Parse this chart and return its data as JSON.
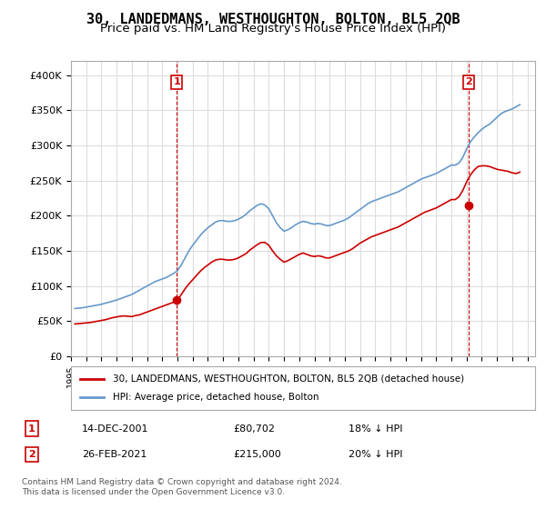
{
  "title": "30, LANDEDMANS, WESTHOUGHTON, BOLTON, BL5 2QB",
  "subtitle": "Price paid vs. HM Land Registry's House Price Index (HPI)",
  "ylabel_ticks": [
    "£0",
    "£50K",
    "£100K",
    "£150K",
    "£200K",
    "£250K",
    "£300K",
    "£350K",
    "£400K"
  ],
  "ytick_values": [
    0,
    50000,
    100000,
    150000,
    200000,
    250000,
    300000,
    350000,
    400000
  ],
  "ylim": [
    0,
    420000
  ],
  "xlim_start": 1995.0,
  "xlim_end": 2025.5,
  "sale1_x": 2001.95,
  "sale1_y": 80702,
  "sale2_x": 2021.15,
  "sale2_y": 215000,
  "sale1_label": "1",
  "sale2_label": "2",
  "vline1_x": 2001.95,
  "vline2_x": 2021.15,
  "legend_line1": "30, LANDEDMANS, WESTHOUGHTON, BOLTON, BL5 2QB (detached house)",
  "legend_line2": "HPI: Average price, detached house, Bolton",
  "annotation1_box": "1",
  "annotation1_date": "14-DEC-2001",
  "annotation1_price": "£80,702",
  "annotation1_hpi": "18% ↓ HPI",
  "annotation2_box": "2",
  "annotation2_date": "26-FEB-2021",
  "annotation2_price": "£215,000",
  "annotation2_hpi": "20% ↓ HPI",
  "footer": "Contains HM Land Registry data © Crown copyright and database right 2024.\nThis data is licensed under the Open Government Licence v3.0.",
  "red_color": "#cc0000",
  "blue_color": "#6699cc",
  "vline_color": "#cc0000",
  "grid_color": "#dddddd",
  "background_color": "#ffffff",
  "plot_bg_color": "#ffffff",
  "title_fontsize": 11,
  "subtitle_fontsize": 9.5,
  "hpi_data": {
    "years": [
      1995.25,
      1995.5,
      1995.75,
      1996.0,
      1996.25,
      1996.5,
      1996.75,
      1997.0,
      1997.25,
      1997.5,
      1997.75,
      1998.0,
      1998.25,
      1998.5,
      1998.75,
      1999.0,
      1999.25,
      1999.5,
      1999.75,
      2000.0,
      2000.25,
      2000.5,
      2000.75,
      2001.0,
      2001.25,
      2001.5,
      2001.75,
      2002.0,
      2002.25,
      2002.5,
      2002.75,
      2003.0,
      2003.25,
      2003.5,
      2003.75,
      2004.0,
      2004.25,
      2004.5,
      2004.75,
      2005.0,
      2005.25,
      2005.5,
      2005.75,
      2006.0,
      2006.25,
      2006.5,
      2006.75,
      2007.0,
      2007.25,
      2007.5,
      2007.75,
      2008.0,
      2008.25,
      2008.5,
      2008.75,
      2009.0,
      2009.25,
      2009.5,
      2009.75,
      2010.0,
      2010.25,
      2010.5,
      2010.75,
      2011.0,
      2011.25,
      2011.5,
      2011.75,
      2012.0,
      2012.25,
      2012.5,
      2012.75,
      2013.0,
      2013.25,
      2013.5,
      2013.75,
      2014.0,
      2014.25,
      2014.5,
      2014.75,
      2015.0,
      2015.25,
      2015.5,
      2015.75,
      2016.0,
      2016.25,
      2016.5,
      2016.75,
      2017.0,
      2017.25,
      2017.5,
      2017.75,
      2018.0,
      2018.25,
      2018.5,
      2018.75,
      2019.0,
      2019.25,
      2019.5,
      2019.75,
      2020.0,
      2020.25,
      2020.5,
      2020.75,
      2021.0,
      2021.25,
      2021.5,
      2021.75,
      2022.0,
      2022.25,
      2022.5,
      2022.75,
      2023.0,
      2023.25,
      2023.5,
      2023.75,
      2024.0,
      2024.25,
      2024.5
    ],
    "values": [
      68000,
      68500,
      69000,
      70000,
      71000,
      72000,
      73000,
      74000,
      75500,
      77000,
      78500,
      80000,
      82000,
      84000,
      86000,
      88000,
      91000,
      94000,
      97000,
      100000,
      103000,
      106000,
      108000,
      110000,
      112000,
      115000,
      118000,
      122000,
      130000,
      140000,
      150000,
      158000,
      165000,
      172000,
      178000,
      183000,
      187000,
      191000,
      193000,
      193000,
      192000,
      192000,
      193000,
      195000,
      198000,
      202000,
      207000,
      211000,
      215000,
      217000,
      215000,
      210000,
      200000,
      190000,
      183000,
      178000,
      180000,
      183000,
      187000,
      190000,
      192000,
      191000,
      189000,
      188000,
      189000,
      188000,
      186000,
      186000,
      188000,
      190000,
      192000,
      194000,
      197000,
      201000,
      205000,
      209000,
      213000,
      217000,
      220000,
      222000,
      224000,
      226000,
      228000,
      230000,
      232000,
      234000,
      237000,
      240000,
      243000,
      246000,
      249000,
      252000,
      254000,
      256000,
      258000,
      260000,
      263000,
      266000,
      269000,
      272000,
      272000,
      275000,
      283000,
      295000,
      305000,
      312000,
      318000,
      323000,
      327000,
      330000,
      335000,
      340000,
      345000,
      348000,
      350000,
      352000,
      355000,
      358000
    ]
  },
  "red_data": {
    "years": [
      1995.25,
      1995.5,
      1995.75,
      1996.0,
      1996.25,
      1996.5,
      1996.75,
      1997.0,
      1997.25,
      1997.5,
      1997.75,
      1998.0,
      1998.25,
      1998.5,
      1998.75,
      1999.0,
      1999.25,
      1999.5,
      1999.75,
      2000.0,
      2000.25,
      2000.5,
      2000.75,
      2001.0,
      2001.25,
      2001.5,
      2001.75,
      2002.0,
      2002.25,
      2002.5,
      2002.75,
      2003.0,
      2003.25,
      2003.5,
      2003.75,
      2004.0,
      2004.25,
      2004.5,
      2004.75,
      2005.0,
      2005.25,
      2005.5,
      2005.75,
      2006.0,
      2006.25,
      2006.5,
      2006.75,
      2007.0,
      2007.25,
      2007.5,
      2007.75,
      2008.0,
      2008.25,
      2008.5,
      2008.75,
      2009.0,
      2009.25,
      2009.5,
      2009.75,
      2010.0,
      2010.25,
      2010.5,
      2010.75,
      2011.0,
      2011.25,
      2011.5,
      2011.75,
      2012.0,
      2012.25,
      2012.5,
      2012.75,
      2013.0,
      2013.25,
      2013.5,
      2013.75,
      2014.0,
      2014.25,
      2014.5,
      2014.75,
      2015.0,
      2015.25,
      2015.5,
      2015.75,
      2016.0,
      2016.25,
      2016.5,
      2016.75,
      2017.0,
      2017.25,
      2017.5,
      2017.75,
      2018.0,
      2018.25,
      2018.5,
      2018.75,
      2019.0,
      2019.25,
      2019.5,
      2019.75,
      2020.0,
      2020.25,
      2020.5,
      2020.75,
      2021.0,
      2021.25,
      2021.5,
      2021.75,
      2022.0,
      2022.25,
      2022.5,
      2022.75,
      2023.0,
      2023.25,
      2023.5,
      2023.75,
      2024.0,
      2024.25,
      2024.5
    ],
    "values": [
      46000,
      46500,
      47000,
      47500,
      48000,
      49000,
      50000,
      51000,
      52000,
      53500,
      55000,
      56000,
      57000,
      57500,
      57000,
      56500,
      58000,
      59000,
      61000,
      63000,
      65000,
      67000,
      69000,
      71000,
      73000,
      75000,
      77000,
      80000,
      88000,
      96000,
      103000,
      109000,
      115000,
      121000,
      126000,
      130000,
      134000,
      137000,
      138000,
      138000,
      137000,
      137000,
      138000,
      140000,
      143000,
      146000,
      151000,
      155000,
      159000,
      162000,
      162000,
      158000,
      150000,
      143000,
      138000,
      134000,
      136000,
      139000,
      142000,
      145000,
      147000,
      145000,
      143000,
      142000,
      143000,
      142000,
      140000,
      140000,
      142000,
      144000,
      146000,
      148000,
      150000,
      153000,
      157000,
      161000,
      164000,
      167000,
      170000,
      172000,
      174000,
      176000,
      178000,
      180000,
      182000,
      184000,
      187000,
      190000,
      193000,
      196000,
      199000,
      202000,
      205000,
      207000,
      209000,
      211000,
      214000,
      217000,
      220000,
      223000,
      223000,
      227000,
      236000,
      248000,
      258000,
      265000,
      270000,
      271000,
      271000,
      270000,
      268000,
      266000,
      265000,
      264000,
      263000,
      261000,
      260000,
      262000
    ]
  }
}
